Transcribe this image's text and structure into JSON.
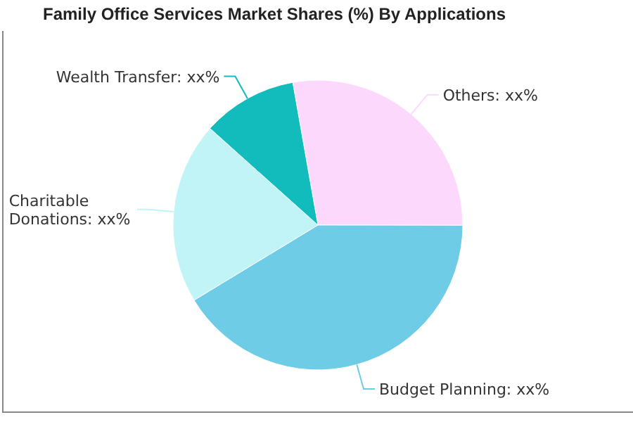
{
  "chart_data": {
    "type": "pie",
    "title": "Family Office Services Market Shares (%) By Applications",
    "categories": [
      "Others",
      "Budget Planning",
      "Charitable Donations",
      "Wealth Transfer"
    ],
    "values": [
      27.8,
      41.3,
      20.3,
      10.6
    ],
    "colors": [
      "#fdd8fd",
      "#6ecce6",
      "#c0f4f7",
      "#13bcbc"
    ],
    "value_labels": [
      "xx%",
      "xx%",
      "xx%",
      "xx%"
    ]
  }
}
